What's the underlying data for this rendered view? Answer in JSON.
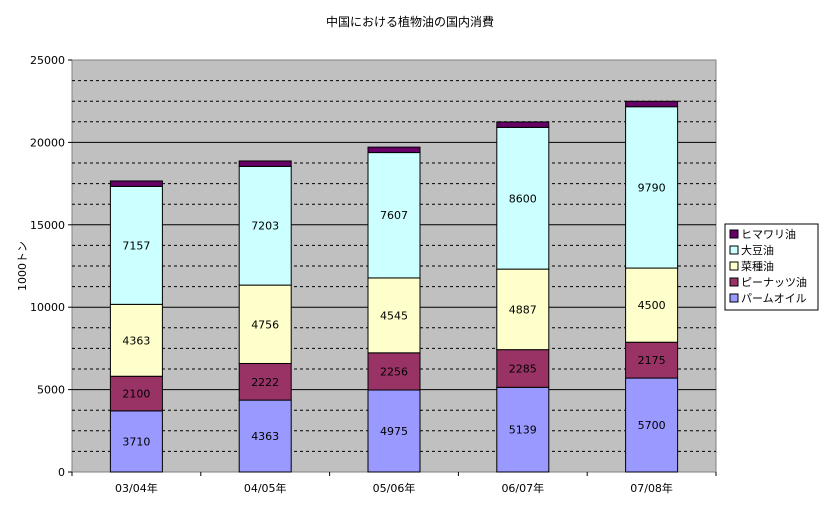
{
  "chart_data": {
    "type": "bar",
    "stacked": true,
    "title": "中国における植物油の国内消費",
    "ylabel": "1000トン",
    "xlabel": "",
    "ylim": [
      0,
      25000
    ],
    "yticks": [
      0,
      5000,
      10000,
      15000,
      20000,
      25000
    ],
    "categories": [
      "03/04年",
      "04/05年",
      "05/06年",
      "06/07年",
      "07/08年"
    ],
    "grid": true,
    "legend_position": "right",
    "series": [
      {
        "name": "パームオイル",
        "color": "#9999ff",
        "values": [
          3710,
          4363,
          4975,
          5139,
          5700
        ],
        "labels": [
          "3710",
          "4363",
          "4975",
          "5139",
          "5700"
        ]
      },
      {
        "name": "ピーナッツ油",
        "color": "#993366",
        "values": [
          2100,
          2222,
          2256,
          2285,
          2175
        ],
        "labels": [
          "2100",
          "2222",
          "2256",
          "2285",
          "2175"
        ]
      },
      {
        "name": "菜種油",
        "color": "#ffffcc",
        "values": [
          4363,
          4756,
          4545,
          4887,
          4500
        ],
        "labels": [
          "4363",
          "4756",
          "4545",
          "4887",
          "4500"
        ]
      },
      {
        "name": "大豆油",
        "color": "#ccffff",
        "values": [
          7157,
          7203,
          7607,
          8600,
          9790
        ],
        "labels": [
          "7157",
          "7203",
          "7607",
          "8600",
          "9790"
        ]
      },
      {
        "name": "ヒマワリ油",
        "color": "#660066",
        "values": [
          330,
          330,
          330,
          330,
          330
        ],
        "labels": []
      }
    ]
  }
}
